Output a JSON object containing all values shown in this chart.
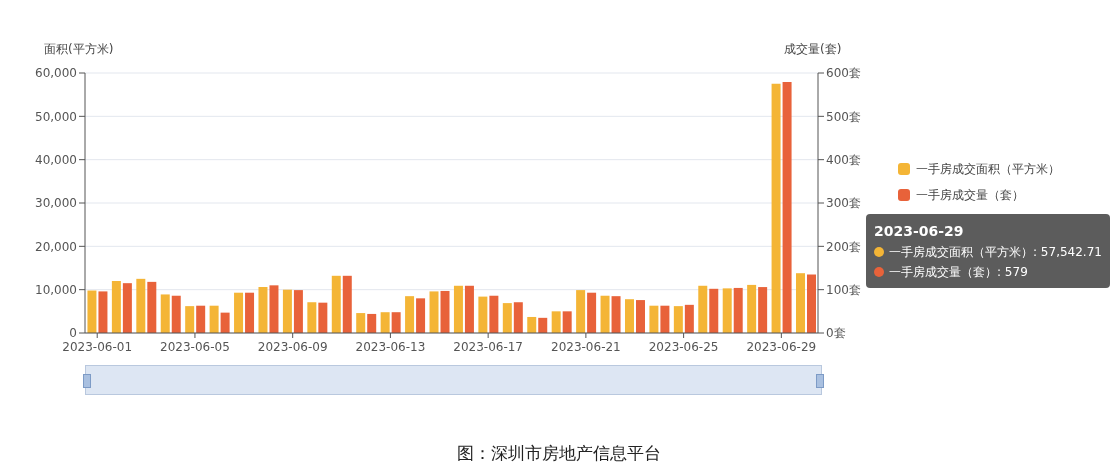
{
  "chart_data": {
    "type": "bar",
    "categories": [
      "2023-06-01",
      null,
      null,
      null,
      "2023-06-05",
      null,
      null,
      null,
      "2023-06-09",
      null,
      null,
      null,
      "2023-06-13",
      null,
      null,
      null,
      "2023-06-17",
      null,
      null,
      null,
      "2023-06-21",
      null,
      null,
      null,
      "2023-06-25",
      null,
      null,
      null,
      "2023-06-29",
      null
    ],
    "series": [
      {
        "name": "一手房成交面积（平方米）",
        "color": "#f4b536",
        "values": [
          9800,
          12000,
          12500,
          8900,
          6200,
          6300,
          9300,
          10600,
          10000,
          7100,
          13200,
          4600,
          4800,
          8500,
          9600,
          10900,
          8400,
          6900,
          3700,
          5000,
          9900,
          8600,
          7800,
          6300,
          6200,
          10900,
          10300,
          11100,
          57542.71,
          13800
        ]
      },
      {
        "name": "一手房成交量（套）",
        "color": "#e8623a",
        "axis": "y2",
        "values": [
          96,
          115,
          118,
          86,
          63,
          47,
          93,
          110,
          99,
          70,
          132,
          44,
          48,
          80,
          97,
          109,
          86,
          71,
          35,
          50,
          93,
          85,
          76,
          63,
          65,
          102,
          104,
          106,
          579,
          135
        ]
      }
    ],
    "ylabel": "面积(平方米)",
    "y2label": "成交量(套)",
    "ylim": [
      0,
      60000
    ],
    "yticks": [
      0,
      {
        "value": 10000,
        "label": "10,000"
      },
      {
        "value": 20000,
        "label": "20,000"
      },
      {
        "value": 30000,
        "label": "30,000"
      },
      {
        "value": 40000,
        "label": "40,000"
      },
      {
        "value": 50000,
        "label": "50,000"
      },
      {
        "value": 60000,
        "label": "60,000"
      }
    ],
    "y2lim": [
      0,
      600
    ],
    "y2ticks": [
      {
        "value": 0,
        "label": "0套"
      },
      {
        "value": 100,
        "label": "100套"
      },
      {
        "value": 200,
        "label": "200套"
      },
      {
        "value": 300,
        "label": "300套"
      },
      {
        "value": 400,
        "label": "400套"
      },
      {
        "value": 500,
        "label": "500套"
      },
      {
        "value": 600,
        "label": "600套"
      }
    ],
    "grid": "y",
    "legend": "right",
    "annotations": [
      "2023-06-29",
      "一手房成交面积（平方米）: 57,542.71",
      "一手房成交量（套）: 579",
      "图：深圳市房地产信息平台"
    ]
  }
}
